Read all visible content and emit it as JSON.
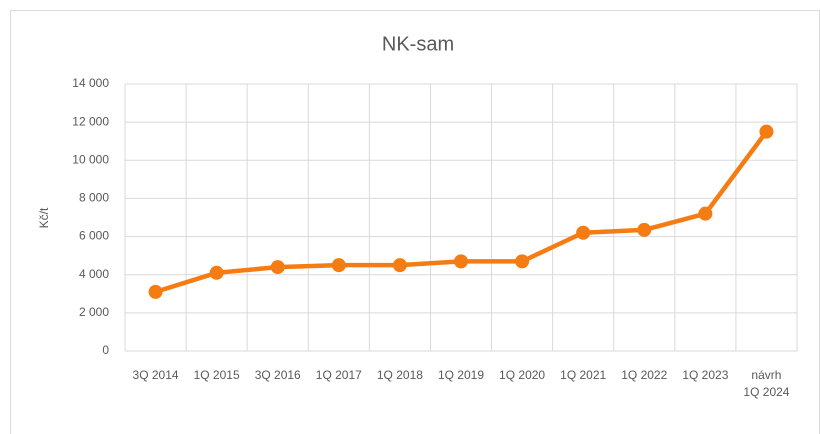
{
  "chart_data": {
    "type": "line",
    "title": "NK-sam",
    "y_label": "Kč/t",
    "categories": [
      "3Q 2014",
      "1Q 2015",
      "3Q 2016",
      "1Q 2017",
      "1Q 2018",
      "1Q 2019",
      "1Q 2020",
      "1Q 2021",
      "1Q 2022",
      "1Q 2023",
      "návrh\n1Q 2024"
    ],
    "series": [
      {
        "name": "NK-sam",
        "color": "#f57c13",
        "values": [
          3100,
          4100,
          4400,
          4500,
          4500,
          4700,
          4700,
          6200,
          6350,
          7200,
          11500
        ]
      }
    ],
    "ylim": [
      0,
      14000
    ],
    "yticks": [
      0,
      {
        "value": 2000,
        "label": "2 000"
      },
      {
        "value": 4000,
        "label": "4 000"
      },
      {
        "value": 6000,
        "label": "6 000"
      },
      {
        "value": 8000,
        "label": "8 000"
      },
      {
        "value": 10000,
        "label": "10 000"
      },
      {
        "value": 12000,
        "label": "12 000"
      },
      {
        "value": 14000,
        "label": "14 000"
      }
    ],
    "grid": true
  }
}
